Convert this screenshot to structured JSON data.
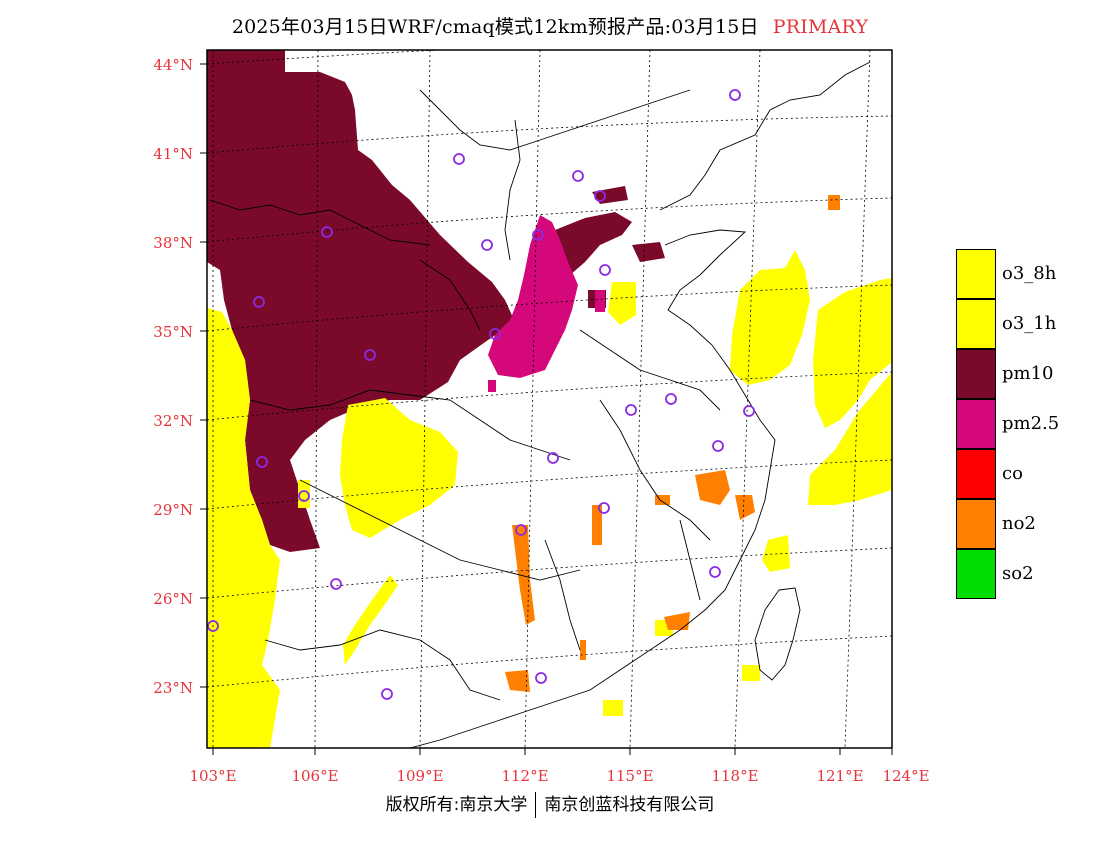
{
  "title": {
    "main": "2025年03月15日WRF/cmaq模式12km预报产品:03月15日",
    "tag": "PRIMARY"
  },
  "lat_labels": [
    "44°N",
    "41°N",
    "38°N",
    "35°N",
    "32°N",
    "29°N",
    "26°N",
    "23°N"
  ],
  "lon_labels": [
    "103°E",
    "106°E",
    "109°E",
    "112°E",
    "115°E",
    "118°E",
    "121°E",
    "124°E"
  ],
  "legend": [
    {
      "label": "o3_8h",
      "color": "#ffff00"
    },
    {
      "label": "o3_1h",
      "color": "#ffff00"
    },
    {
      "label": "pm10",
      "color": "#7b0a2a"
    },
    {
      "label": "pm2.5",
      "color": "#d4087a"
    },
    {
      "label": "co",
      "color": "#ff0000"
    },
    {
      "label": "no2",
      "color": "#ff7f00"
    },
    {
      "label": "so2",
      "color": "#00dd00"
    }
  ],
  "footer": {
    "left": "版权所有:南京大学",
    "right": "南京创蓝科技有限公司"
  },
  "colors": {
    "axis_label": "#e8333a",
    "marker": "#8a2be2"
  }
}
